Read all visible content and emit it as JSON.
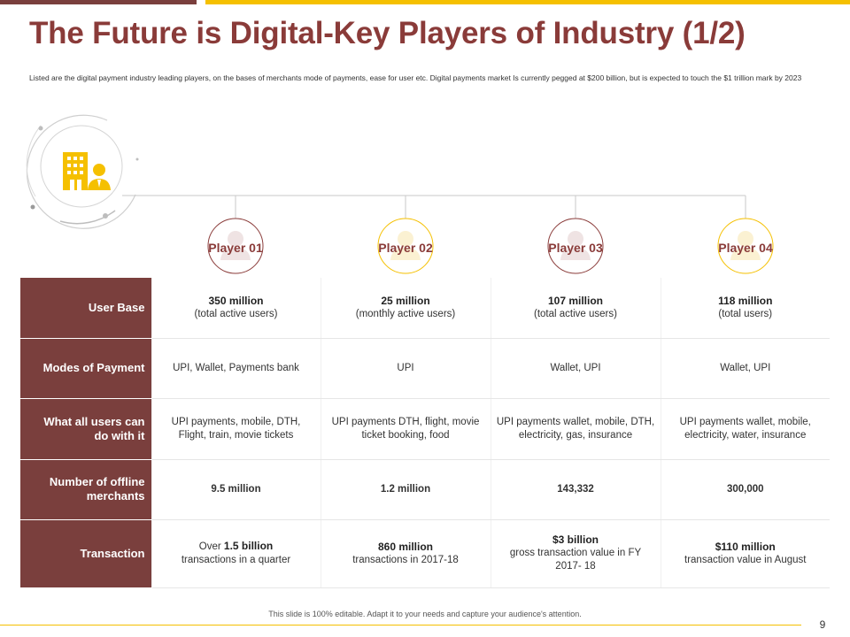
{
  "title": "The Future is Digital-Key Players of Industry (1/2)",
  "subtitle": "Listed are  the digital payment industry leading players, on the bases of merchants mode of payments, ease for user etc. Digital payments market Is currently pegged at $200 billion, but is expected to touch the $1 trillion mark by 2023",
  "colors": {
    "brand": "#7a3f3d",
    "accent": "#f5c000",
    "title": "#8a3b39"
  },
  "hero_icon": "building-user-icon",
  "players": [
    "Player 01",
    "Player 02",
    "Player 03",
    "Player 04"
  ],
  "rows": [
    {
      "label": "User Base",
      "cells": [
        {
          "main": "350 million",
          "sub": "(total active users)"
        },
        {
          "main": "25 million",
          "sub": "(monthly active users)"
        },
        {
          "main": "107 million",
          "sub": "(total active users)"
        },
        {
          "main": "118 million",
          "sub": "(total users)"
        }
      ]
    },
    {
      "label": "Modes of Payment",
      "cells": [
        {
          "text": "UPI, Wallet, Payments bank"
        },
        {
          "text": "UPI"
        },
        {
          "text": "Wallet, UPI"
        },
        {
          "text": "Wallet, UPI"
        }
      ]
    },
    {
      "label": "What all users can do with it",
      "cells": [
        {
          "text": "UPI payments, mobile, DTH, Flight, train, movie tickets"
        },
        {
          "text": "UPI payments DTH, flight, movie ticket booking, food"
        },
        {
          "text": "UPI payments wallet, mobile, DTH, electricity, gas, insurance"
        },
        {
          "text": "UPI payments wallet, mobile, electricity, water, insurance"
        }
      ]
    },
    {
      "label": "Number of offline merchants",
      "cells": [
        {
          "main": "9.5 million"
        },
        {
          "main": "1.2 million"
        },
        {
          "main": "143,332"
        },
        {
          "main": "300,000"
        }
      ]
    },
    {
      "label": "Transaction",
      "cells": [
        {
          "pre": "Over ",
          "main": "1.5 billion",
          "sub": "transactions in a quarter"
        },
        {
          "main": "860 million",
          "sub": "transactions in 2017-18"
        },
        {
          "main": "$3 billion",
          "sub": "gross transaction value in FY 2017- 18"
        },
        {
          "main": "$110 million",
          "sub": "transaction value in August"
        }
      ]
    }
  ],
  "footer_note": "This slide is 100% editable. Adapt it to your needs and capture your audience's attention.",
  "page_number": "9"
}
